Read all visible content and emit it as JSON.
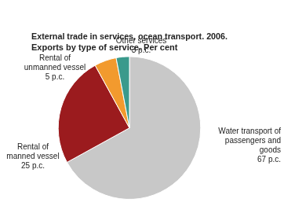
{
  "chart_data": {
    "type": "pie",
    "title": "External trade in services, ocean transport. 2006.",
    "subtitle": "Exports by type of service. Per cent",
    "categories": [
      "Water transport of passengers and goods",
      "Rental of manned vessel",
      "Rental of unmanned vessel",
      "Other services"
    ],
    "values": [
      67,
      25,
      5,
      3
    ],
    "value_labels": [
      "67 p.c.",
      "25 p.c.",
      "5 p.c.",
      "3 p.c."
    ],
    "colors": [
      "#c8c8c8",
      "#9b1b1e",
      "#f29a2e",
      "#3a9a8c"
    ],
    "data_labels": true
  }
}
